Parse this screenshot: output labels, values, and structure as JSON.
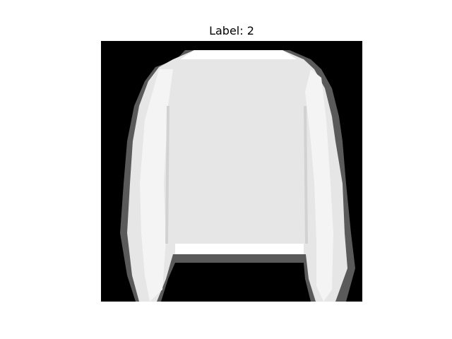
{
  "title": "Label: 2"
}
